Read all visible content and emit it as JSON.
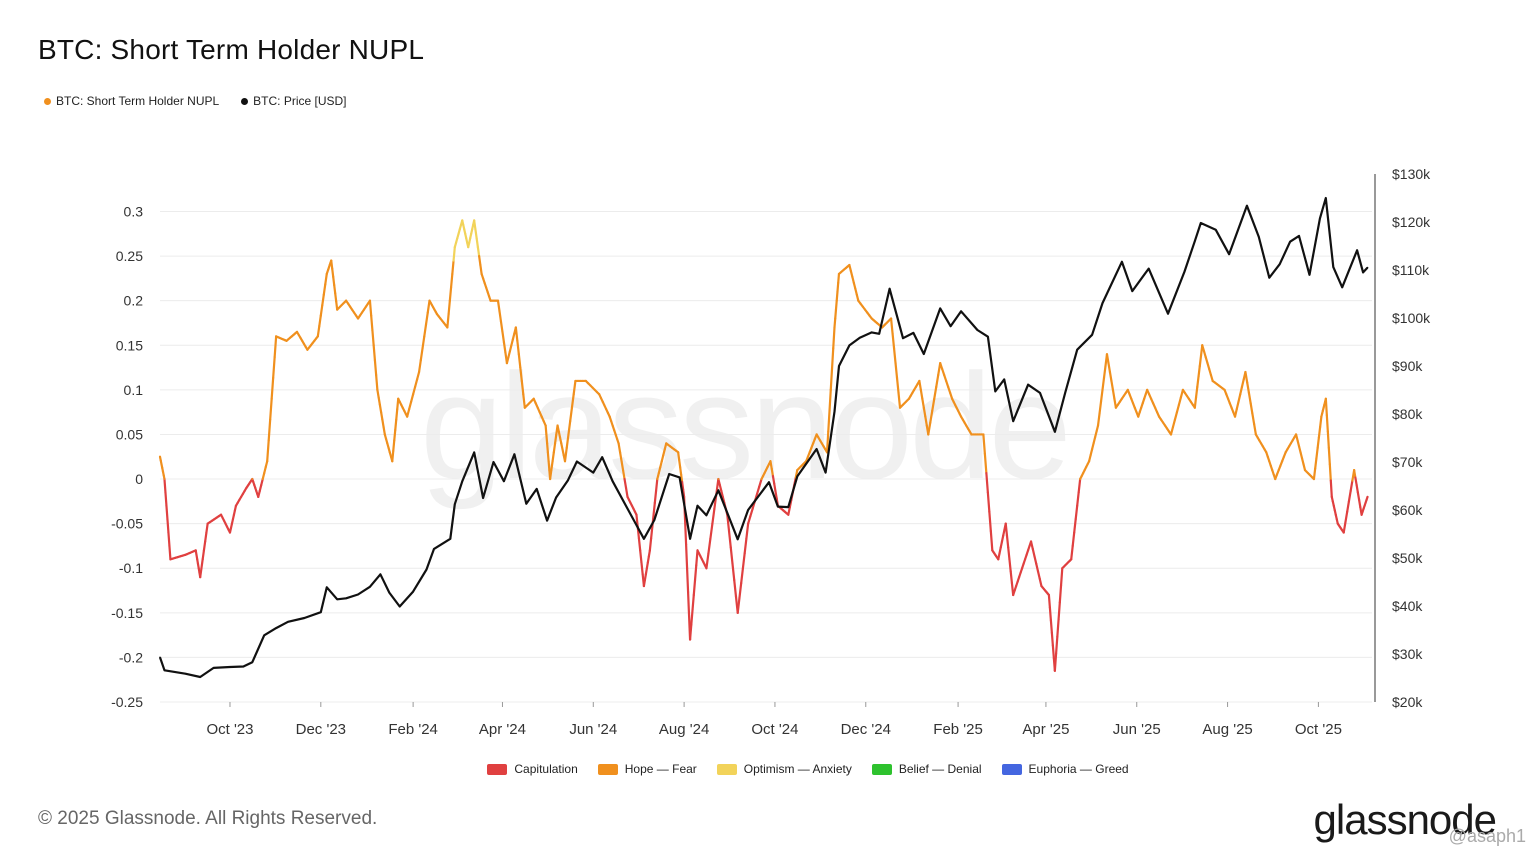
{
  "title": "BTC: Short Term Holder NUPL",
  "legend_top": [
    {
      "label": "BTC: Short Term Holder NUPL",
      "color": "#f0901e"
    },
    {
      "label": "BTC: Price [USD]",
      "color": "#111111"
    }
  ],
  "legend_bottom": [
    {
      "label": "Capitulation",
      "color": "#e04040"
    },
    {
      "label": "Hope — Fear",
      "color": "#f0901e"
    },
    {
      "label": "Optimism — Anxiety",
      "color": "#f2d35a"
    },
    {
      "label": "Belief — Denial",
      "color": "#2ec22e"
    },
    {
      "label": "Euphoria — Greed",
      "color": "#4466e0"
    }
  ],
  "copyright": "© 2025 Glassnode. All Rights Reserved.",
  "brand": "glassnode",
  "watermark": "glassnode",
  "handle": "@asaph1",
  "chart_data": {
    "type": "line",
    "title": "BTC: Short Term Holder NUPL",
    "x_ticks": [
      "Oct '23",
      "Dec '23",
      "Feb '24",
      "Apr '24",
      "Jun '24",
      "Aug '24",
      "Oct '24",
      "Dec '24",
      "Feb '25",
      "Apr '25",
      "Jun '25",
      "Aug '25",
      "Oct '25"
    ],
    "y_left": {
      "min": -0.25,
      "max": 0.3,
      "ticks": [
        "-0.25",
        "-0.2",
        "-0.15",
        "-0.1",
        "-0.05",
        "0",
        "0.05",
        "0.1",
        "0.15",
        "0.2",
        "0.25",
        "0.3"
      ]
    },
    "y_right": {
      "min": 20000,
      "max": 130000,
      "ticks": [
        "$20k",
        "$30k",
        "$40k",
        "$50k",
        "$60k",
        "$70k",
        "$80k",
        "$90k",
        "$100k",
        "$110k",
        "$120k",
        "$130k"
      ]
    },
    "grid": true,
    "x_start": "2023-08-15",
    "series": [
      {
        "name": "BTC: Short Term Holder NUPL",
        "axis": "left",
        "zones": {
          "capitulation_below": 0,
          "optimism_above": 0.25
        },
        "points": [
          [
            "2023-08-15",
            0.025
          ],
          [
            "2023-08-18",
            0.0
          ],
          [
            "2023-08-22",
            -0.09
          ],
          [
            "2023-09-01",
            -0.085
          ],
          [
            "2023-09-08",
            -0.08
          ],
          [
            "2023-09-11",
            -0.11
          ],
          [
            "2023-09-16",
            -0.05
          ],
          [
            "2023-09-25",
            -0.04
          ],
          [
            "2023-10-01",
            -0.06
          ],
          [
            "2023-10-05",
            -0.03
          ],
          [
            "2023-10-12",
            -0.01
          ],
          [
            "2023-10-16",
            0.0
          ],
          [
            "2023-10-20",
            -0.02
          ],
          [
            "2023-10-26",
            0.02
          ],
          [
            "2023-11-01",
            0.16
          ],
          [
            "2023-11-08",
            0.155
          ],
          [
            "2023-11-15",
            0.165
          ],
          [
            "2023-11-22",
            0.145
          ],
          [
            "2023-11-29",
            0.16
          ],
          [
            "2023-12-05",
            0.23
          ],
          [
            "2023-12-08",
            0.245
          ],
          [
            "2023-12-12",
            0.19
          ],
          [
            "2023-12-18",
            0.2
          ],
          [
            "2023-12-26",
            0.18
          ],
          [
            "2024-01-03",
            0.2
          ],
          [
            "2024-01-08",
            0.1
          ],
          [
            "2024-01-13",
            0.05
          ],
          [
            "2024-01-18",
            0.02
          ],
          [
            "2024-01-22",
            0.09
          ],
          [
            "2024-01-28",
            0.07
          ],
          [
            "2024-02-05",
            0.12
          ],
          [
            "2024-02-12",
            0.2
          ],
          [
            "2024-02-17",
            0.185
          ],
          [
            "2024-02-24",
            0.17
          ],
          [
            "2024-02-29",
            0.26
          ],
          [
            "2024-03-05",
            0.29
          ],
          [
            "2024-03-09",
            0.26
          ],
          [
            "2024-03-13",
            0.29
          ],
          [
            "2024-03-18",
            0.23
          ],
          [
            "2024-03-24",
            0.2
          ],
          [
            "2024-03-29",
            0.2
          ],
          [
            "2024-04-04",
            0.13
          ],
          [
            "2024-04-10",
            0.17
          ],
          [
            "2024-04-16",
            0.08
          ],
          [
            "2024-04-22",
            0.09
          ],
          [
            "2024-04-30",
            0.06
          ],
          [
            "2024-05-03",
            0.0
          ],
          [
            "2024-05-08",
            0.06
          ],
          [
            "2024-05-13",
            0.02
          ],
          [
            "2024-05-20",
            0.11
          ],
          [
            "2024-05-27",
            0.11
          ],
          [
            "2024-06-05",
            0.095
          ],
          [
            "2024-06-12",
            0.07
          ],
          [
            "2024-06-18",
            0.04
          ],
          [
            "2024-06-24",
            -0.02
          ],
          [
            "2024-06-30",
            -0.04
          ],
          [
            "2024-07-05",
            -0.12
          ],
          [
            "2024-07-09",
            -0.08
          ],
          [
            "2024-07-14",
            0.0
          ],
          [
            "2024-07-20",
            0.04
          ],
          [
            "2024-07-28",
            0.03
          ],
          [
            "2024-08-01",
            -0.02
          ],
          [
            "2024-08-05",
            -0.18
          ],
          [
            "2024-08-10",
            -0.08
          ],
          [
            "2024-08-16",
            -0.1
          ],
          [
            "2024-08-24",
            0.0
          ],
          [
            "2024-08-30",
            -0.04
          ],
          [
            "2024-09-06",
            -0.15
          ],
          [
            "2024-09-13",
            -0.05
          ],
          [
            "2024-09-22",
            0.0
          ],
          [
            "2024-09-28",
            0.02
          ],
          [
            "2024-10-03",
            -0.03
          ],
          [
            "2024-10-10",
            -0.04
          ],
          [
            "2024-10-16",
            0.01
          ],
          [
            "2024-10-22",
            0.02
          ],
          [
            "2024-10-29",
            0.05
          ],
          [
            "2024-11-05",
            0.03
          ],
          [
            "2024-11-10",
            0.17
          ],
          [
            "2024-11-13",
            0.23
          ],
          [
            "2024-11-20",
            0.24
          ],
          [
            "2024-11-26",
            0.2
          ],
          [
            "2024-12-05",
            0.18
          ],
          [
            "2024-12-12",
            0.17
          ],
          [
            "2024-12-18",
            0.18
          ],
          [
            "2024-12-24",
            0.08
          ],
          [
            "2024-12-30",
            0.09
          ],
          [
            "2025-01-06",
            0.11
          ],
          [
            "2025-01-12",
            0.05
          ],
          [
            "2025-01-20",
            0.13
          ],
          [
            "2025-01-28",
            0.09
          ],
          [
            "2025-02-03",
            0.07
          ],
          [
            "2025-02-10",
            0.05
          ],
          [
            "2025-02-18",
            0.05
          ],
          [
            "2025-02-24",
            -0.08
          ],
          [
            "2025-02-28",
            -0.09
          ],
          [
            "2025-03-05",
            -0.05
          ],
          [
            "2025-03-10",
            -0.13
          ],
          [
            "2025-03-16",
            -0.1
          ],
          [
            "2025-03-22",
            -0.07
          ],
          [
            "2025-03-29",
            -0.12
          ],
          [
            "2025-04-03",
            -0.13
          ],
          [
            "2025-04-07",
            -0.215
          ],
          [
            "2025-04-12",
            -0.1
          ],
          [
            "2025-04-18",
            -0.09
          ],
          [
            "2025-04-24",
            0.0
          ],
          [
            "2025-04-30",
            0.02
          ],
          [
            "2025-05-06",
            0.06
          ],
          [
            "2025-05-12",
            0.14
          ],
          [
            "2025-05-18",
            0.08
          ],
          [
            "2025-05-26",
            0.1
          ],
          [
            "2025-06-02",
            0.07
          ],
          [
            "2025-06-08",
            0.1
          ],
          [
            "2025-06-16",
            0.07
          ],
          [
            "2025-06-24",
            0.05
          ],
          [
            "2025-07-02",
            0.1
          ],
          [
            "2025-07-10",
            0.08
          ],
          [
            "2025-07-15",
            0.15
          ],
          [
            "2025-07-22",
            0.11
          ],
          [
            "2025-07-30",
            0.1
          ],
          [
            "2025-08-06",
            0.07
          ],
          [
            "2025-08-13",
            0.12
          ],
          [
            "2025-08-20",
            0.05
          ],
          [
            "2025-08-27",
            0.03
          ],
          [
            "2025-09-02",
            0.0
          ],
          [
            "2025-09-09",
            0.03
          ],
          [
            "2025-09-16",
            0.05
          ],
          [
            "2025-09-22",
            0.01
          ],
          [
            "2025-09-28",
            0.0
          ],
          [
            "2025-10-03",
            0.07
          ],
          [
            "2025-10-06",
            0.09
          ],
          [
            "2025-10-10",
            -0.02
          ],
          [
            "2025-10-14",
            -0.05
          ],
          [
            "2025-10-18",
            -0.06
          ],
          [
            "2025-10-25",
            0.01
          ],
          [
            "2025-10-30",
            -0.04
          ],
          [
            "2025-11-03",
            -0.02
          ]
        ]
      },
      {
        "name": "BTC: Price [USD]",
        "axis": "right",
        "color": "#111111",
        "points": [
          [
            "2023-08-15",
            29300
          ],
          [
            "2023-08-18",
            26600
          ],
          [
            "2023-09-01",
            25900
          ],
          [
            "2023-09-11",
            25200
          ],
          [
            "2023-09-20",
            27100
          ],
          [
            "2023-10-01",
            27300
          ],
          [
            "2023-10-10",
            27400
          ],
          [
            "2023-10-16",
            28300
          ],
          [
            "2023-10-24",
            33900
          ],
          [
            "2023-11-01",
            35400
          ],
          [
            "2023-11-09",
            36700
          ],
          [
            "2023-11-20",
            37500
          ],
          [
            "2023-12-01",
            38700
          ],
          [
            "2023-12-05",
            43900
          ],
          [
            "2023-12-12",
            41400
          ],
          [
            "2023-12-18",
            41600
          ],
          [
            "2023-12-26",
            42400
          ],
          [
            "2024-01-03",
            44000
          ],
          [
            "2024-01-10",
            46600
          ],
          [
            "2024-01-16",
            42800
          ],
          [
            "2024-01-23",
            39900
          ],
          [
            "2024-02-01",
            43000
          ],
          [
            "2024-02-10",
            47600
          ],
          [
            "2024-02-15",
            51900
          ],
          [
            "2024-02-26",
            54000
          ],
          [
            "2024-02-29",
            61200
          ],
          [
            "2024-03-05",
            66000
          ],
          [
            "2024-03-13",
            72000
          ],
          [
            "2024-03-19",
            62500
          ],
          [
            "2024-03-26",
            70000
          ],
          [
            "2024-04-02",
            66000
          ],
          [
            "2024-04-09",
            71600
          ],
          [
            "2024-04-17",
            61300
          ],
          [
            "2024-04-24",
            64400
          ],
          [
            "2024-05-01",
            57800
          ],
          [
            "2024-05-07",
            62600
          ],
          [
            "2024-05-15",
            66200
          ],
          [
            "2024-05-21",
            70100
          ],
          [
            "2024-06-01",
            67800
          ],
          [
            "2024-06-07",
            71000
          ],
          [
            "2024-06-14",
            66000
          ],
          [
            "2024-06-24",
            60300
          ],
          [
            "2024-07-05",
            54000
          ],
          [
            "2024-07-12",
            57900
          ],
          [
            "2024-07-22",
            67500
          ],
          [
            "2024-07-29",
            66800
          ],
          [
            "2024-08-05",
            54000
          ],
          [
            "2024-08-10",
            60900
          ],
          [
            "2024-08-16",
            58900
          ],
          [
            "2024-08-24",
            64100
          ],
          [
            "2024-09-06",
            53900
          ],
          [
            "2024-09-13",
            60000
          ],
          [
            "2024-09-27",
            65800
          ],
          [
            "2024-10-03",
            60700
          ],
          [
            "2024-10-10",
            60600
          ],
          [
            "2024-10-16",
            67000
          ],
          [
            "2024-10-29",
            72700
          ],
          [
            "2024-11-04",
            67800
          ],
          [
            "2024-11-10",
            80500
          ],
          [
            "2024-11-13",
            90000
          ],
          [
            "2024-11-20",
            94300
          ],
          [
            "2024-11-27",
            95900
          ],
          [
            "2024-12-05",
            97000
          ],
          [
            "2024-12-10",
            96700
          ],
          [
            "2024-12-17",
            106100
          ],
          [
            "2024-12-26",
            95800
          ],
          [
            "2025-01-02",
            96900
          ],
          [
            "2025-01-09",
            92500
          ],
          [
            "2025-01-20",
            102000
          ],
          [
            "2025-01-27",
            98300
          ],
          [
            "2025-02-03",
            101400
          ],
          [
            "2025-02-14",
            97500
          ],
          [
            "2025-02-21",
            96100
          ],
          [
            "2025-02-26",
            84700
          ],
          [
            "2025-03-04",
            87200
          ],
          [
            "2025-03-10",
            78500
          ],
          [
            "2025-03-20",
            86100
          ],
          [
            "2025-03-28",
            84400
          ],
          [
            "2025-04-07",
            76300
          ],
          [
            "2025-04-14",
            84500
          ],
          [
            "2025-04-22",
            93400
          ],
          [
            "2025-05-02",
            96500
          ],
          [
            "2025-05-09",
            103100
          ],
          [
            "2025-05-22",
            111700
          ],
          [
            "2025-05-29",
            105600
          ],
          [
            "2025-06-09",
            110300
          ],
          [
            "2025-06-22",
            100900
          ],
          [
            "2025-07-03",
            109600
          ],
          [
            "2025-07-10",
            116000
          ],
          [
            "2025-07-14",
            119800
          ],
          [
            "2025-07-24",
            118400
          ],
          [
            "2025-08-02",
            113300
          ],
          [
            "2025-08-14",
            123400
          ],
          [
            "2025-08-22",
            116900
          ],
          [
            "2025-08-29",
            108400
          ],
          [
            "2025-09-05",
            111200
          ],
          [
            "2025-09-12",
            115900
          ],
          [
            "2025-09-18",
            117100
          ],
          [
            "2025-09-25",
            109000
          ],
          [
            "2025-10-02",
            120700
          ],
          [
            "2025-10-06",
            125000
          ],
          [
            "2025-10-11",
            110600
          ],
          [
            "2025-10-17",
            106400
          ],
          [
            "2025-10-27",
            114100
          ],
          [
            "2025-10-31",
            109500
          ],
          [
            "2025-11-03",
            110500
          ]
        ]
      }
    ]
  }
}
